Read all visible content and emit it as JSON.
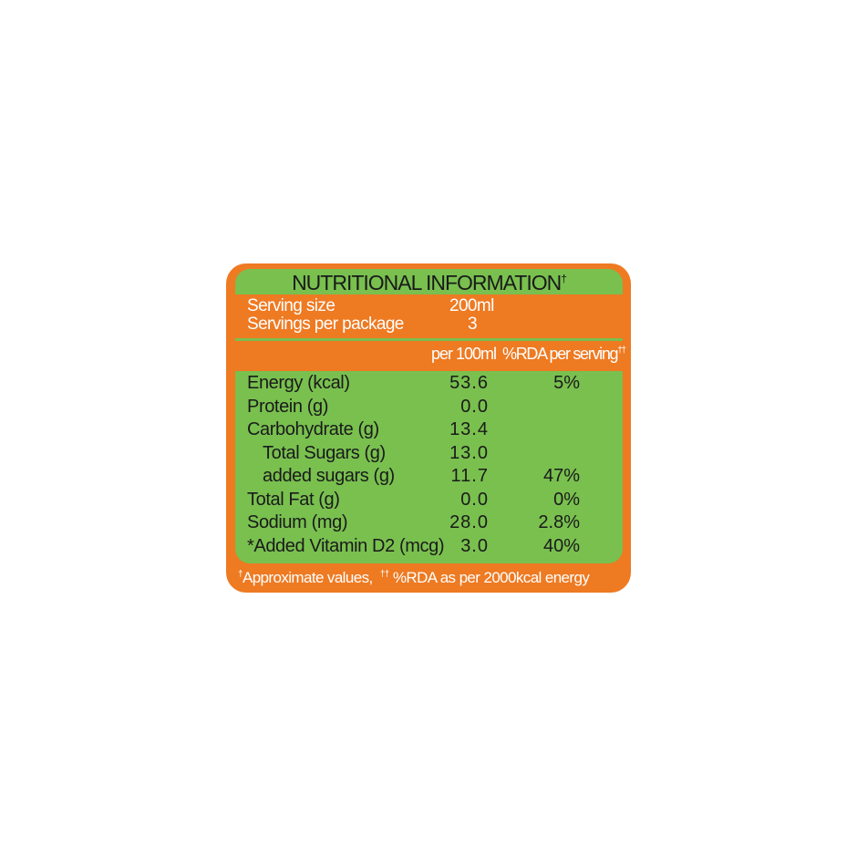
{
  "title": "NUTRITIONAL INFORMATION",
  "title_mark": "†",
  "serving_size_label": "Serving size",
  "serving_size_value": "200ml",
  "servings_label": "Servings per package",
  "servings_value": "3",
  "col_per100": "per 100ml",
  "col_rda": "%RDA per serving",
  "col_rda_mark": "††",
  "rows": [
    {
      "name": "Energy (kcal)",
      "value": "53.6",
      "rda": "5%",
      "indent": false
    },
    {
      "name": "Protein (g)",
      "value": "0.0",
      "rda": "",
      "indent": false
    },
    {
      "name": "Carbohydrate (g)",
      "value": "13.4",
      "rda": "",
      "indent": false
    },
    {
      "name": "Total Sugars (g)",
      "value": "13.0",
      "rda": "",
      "indent": true
    },
    {
      "name": "added sugars (g)",
      "value": "11.7",
      "rda": "47%",
      "indent": true
    },
    {
      "name": "Total Fat (g)",
      "value": "0.0",
      "rda": "0%",
      "indent": false
    },
    {
      "name": "Sodium (mg)",
      "value": "28.0",
      "rda": "2.8%",
      "indent": false
    },
    {
      "name": "*Added Vitamin D2 (mcg)",
      "value": "3.0",
      "rda": "40%",
      "indent": false
    }
  ],
  "footnote_mark1": "†",
  "footnote_1": "Approximate values,",
  "footnote_mark2": "††",
  "footnote_2": "%RDA as per 2000kcal energy",
  "colors": {
    "orange": "#ee7a22",
    "green": "#79c04f"
  }
}
